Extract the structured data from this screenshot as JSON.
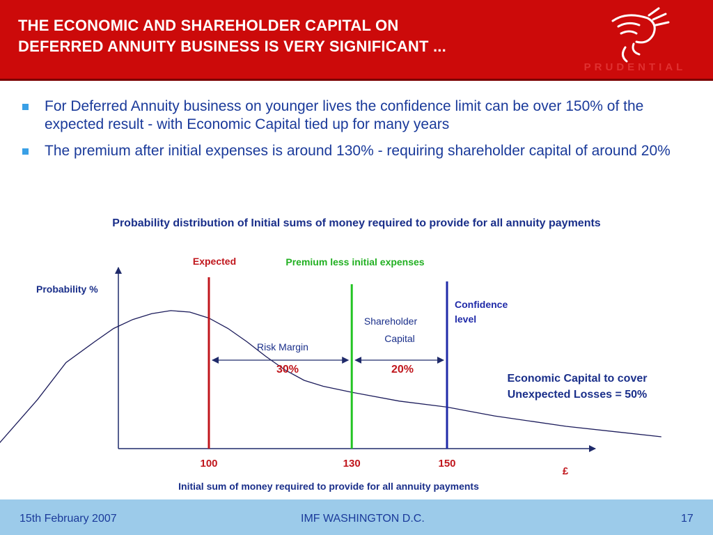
{
  "header": {
    "title_line1": "THE ECONOMIC AND SHAREHOLDER CAPITAL ON",
    "title_line2": "DEFERRED ANNUITY BUSINESS IS VERY SIGNIFICANT ...",
    "logo_text": "PRUDENTIAL"
  },
  "bullets": [
    "For Deferred Annuity business on younger lives the confidence limit can be over 150% of the expected result  - with Economic Capital tied up for many years",
    "The premium after initial expenses is around 130% - requiring shareholder capital of around 20%"
  ],
  "chart_data": {
    "type": "line",
    "title": "Probability distribution of Initial sums of money required to provide for all annuity payments",
    "xlabel": "Initial sum of money required to provide for all annuity payments",
    "ylabel": "Probability %",
    "x_unit": "£",
    "curve": {
      "x": [
        55,
        64,
        70,
        76,
        80,
        84,
        88,
        92,
        96,
        100,
        104,
        108,
        112,
        116,
        120,
        124,
        130,
        140,
        150,
        160,
        175,
        195
      ],
      "y": [
        0,
        33,
        58,
        72,
        81,
        87,
        91,
        93,
        92,
        88,
        81,
        72,
        62,
        53,
        46,
        42,
        38,
        32,
        28,
        22,
        15,
        8
      ]
    },
    "vertical_lines": [
      {
        "x": 100,
        "label": "Expected",
        "tick_label": "100",
        "color": "#c0161c"
      },
      {
        "x": 130,
        "label": "Premium less initial expenses",
        "tick_label": "130",
        "color": "#22c422"
      },
      {
        "x": 150,
        "label": "Confidence level",
        "tick_label": "150",
        "color": "#1f2aa8"
      }
    ],
    "spans": [
      {
        "from": 100,
        "to": 130,
        "label": "Risk Margin",
        "value": "30%"
      },
      {
        "from": 130,
        "to": 150,
        "label": "Shareholder Capital",
        "value": "20%"
      }
    ],
    "annotation": "Economic Capital to cover Unexpected Losses = 50%",
    "colors": {
      "curve": "#1a1a5a",
      "axis": "#1f2a6a",
      "value_red": "#c0161c",
      "annotation_blue": "#1a2f8a"
    }
  },
  "footer": {
    "date": "15th February 2007",
    "event": "IMF WASHINGTON D.C.",
    "page": "17"
  }
}
